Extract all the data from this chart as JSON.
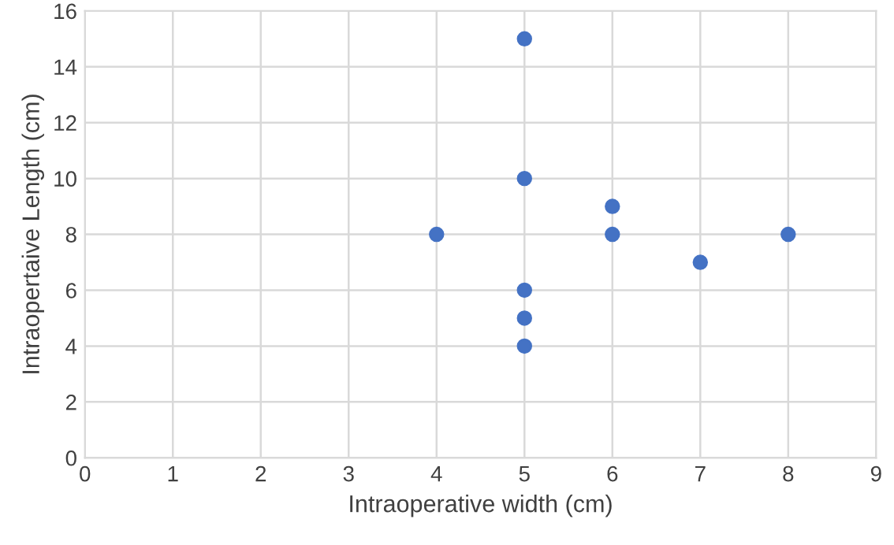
{
  "chart_data": {
    "type": "scatter",
    "xlabel": "Intraoperative width (cm)",
    "ylabel": "Intraopertaive Length (cm)",
    "x": [
      5,
      5,
      6,
      4,
      6,
      8,
      7,
      5,
      5,
      5
    ],
    "series": [
      {
        "color": "#4472c4",
        "values": [
          15,
          10,
          9,
          8,
          8,
          8,
          7,
          6,
          5,
          4
        ]
      }
    ],
    "xlim": [
      0,
      9
    ],
    "xticks": [
      0,
      1,
      2,
      3,
      4,
      5,
      6,
      7,
      8,
      9
    ],
    "ylim": [
      0,
      16
    ],
    "yticks": [
      0,
      2,
      4,
      6,
      8,
      10,
      12,
      14,
      16
    ],
    "grid": true,
    "marker": "circle",
    "legend": false
  }
}
